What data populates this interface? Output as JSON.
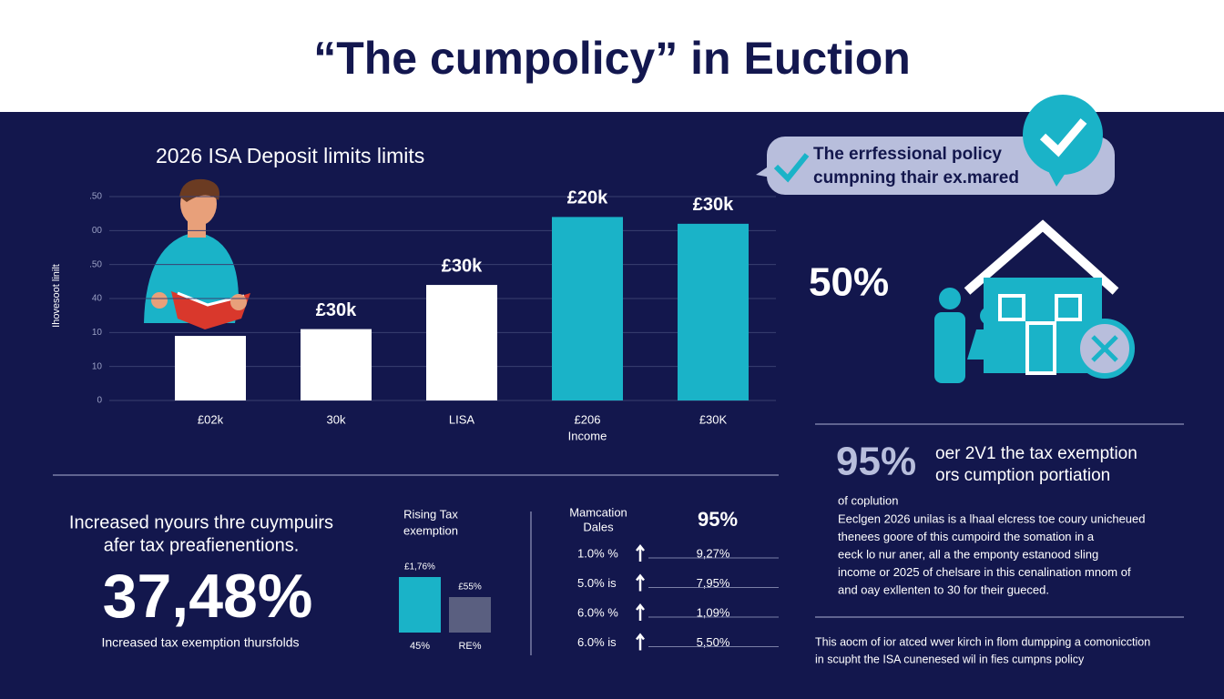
{
  "header": {
    "title": "“The cumpolicy” in Euction"
  },
  "chart_data": [
    {
      "type": "bar",
      "title": "2026 ISA Deposit limits limits",
      "y_label": "Ihovesoot linilt",
      "x_label": "Income",
      "categories": [
        "£02k",
        "30k",
        "LISA",
        "£206",
        "£30K"
      ],
      "values": [
        1.9,
        2.1,
        3.4,
        5.4,
        5.2
      ],
      "value_labels": [
        null,
        "£30k",
        "£30k",
        "£20k",
        "£30k"
      ],
      "colors": [
        "#ffffff",
        "#ffffff",
        "#ffffff",
        "#1ab3c8",
        "#1ab3c8"
      ],
      "ylim": [
        0,
        6
      ],
      "yticks": [
        0,
        {
          "value": 1,
          "label": "10"
        },
        {
          "value": 2,
          "label": "10"
        },
        {
          "value": 3,
          "label": "40"
        },
        {
          "value": 4,
          "label": ".50"
        },
        {
          "value": 5,
          "label": "00"
        },
        {
          "value": 6,
          "label": ".50"
        }
      ],
      "grid": true
    },
    {
      "type": "bar",
      "title": [
        "Rising Tax",
        "exemption"
      ],
      "categories": [
        "45%",
        "RE%"
      ],
      "top_labels": [
        "£1,76%",
        "£55%"
      ],
      "values": [
        61,
        39
      ],
      "colors": [
        "#1ab3c8",
        "#5a5f80"
      ],
      "ylim": [
        0,
        70
      ]
    }
  ],
  "bubble": {
    "lines": [
      "The errfessional policy",
      "cumpning thair ex.mared"
    ]
  },
  "stat_50": "50%",
  "stat_95": {
    "value": "95%",
    "lines": [
      "oer 2V1 the tax exemption",
      "ors cumption portiation"
    ]
  },
  "paragraph": {
    "heading": "of coplution",
    "lines": [
      "Eeclgen 2026 unilas is a lhaal elcress toe coury unicheued",
      "thenees goore of this cumpoird the somation in a",
      "eeck lo nur aner, all a the emponty estanood sling",
      "income or 2025 of chelsare in this cenalination mnom of",
      "and oay exllenten to 30 for their gueced."
    ]
  },
  "note": {
    "lines": [
      "This aocm of ior atced wver kirch in flom dumpping a comonicction",
      "in scupht the ISA cunenesed wil in fies cumpns policy"
    ]
  },
  "left_block": {
    "lines": [
      "Increased nyours thre cuympuirs",
      "afer tax preafienentions."
    ],
    "big": "37,48%",
    "caption": "Increased tax exemption thursfolds"
  },
  "table": {
    "header": [
      [
        "Mamcation",
        "Dales"
      ],
      "95%"
    ],
    "rows": [
      [
        "1.0% %",
        "9,27%"
      ],
      [
        "5.0% is",
        "7,95%"
      ],
      [
        "6.0% %",
        "1,09%"
      ],
      [
        "6.0% is",
        "5,50%"
      ]
    ]
  }
}
